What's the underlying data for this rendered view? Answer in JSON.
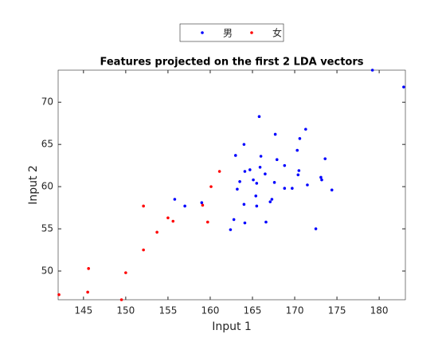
{
  "chart_data": {
    "type": "scatter",
    "title": "Features projected on the first 2 LDA vectors",
    "x_label": "Input 1",
    "y_label": "Input 2",
    "xlim": [
      142,
      183.1
    ],
    "ylim": [
      46.6,
      73.8
    ],
    "xticks": [
      145,
      150,
      155,
      160,
      165,
      170,
      175,
      180
    ],
    "yticks": [
      50,
      55,
      60,
      65,
      70
    ],
    "legend_position": "top-center",
    "series": [
      {
        "name": "男",
        "color": "#0000ff",
        "x": [
          179.2,
          182.9,
          165.8,
          171.3,
          167.7,
          170.6,
          164.0,
          170.3,
          163.0,
          166.0,
          167.9,
          173.6,
          168.8,
          165.9,
          164.1,
          164.7,
          170.5,
          166.5,
          170.4,
          173.1,
          165.1,
          173.2,
          163.5,
          167.6,
          165.5,
          171.5,
          163.2,
          168.8,
          169.7,
          174.4,
          155.8,
          159.0,
          157.0,
          164.0,
          165.4,
          167.1,
          165.5,
          167.3,
          162.8,
          164.1,
          166.6,
          162.4,
          172.5
        ],
        "values": [
          73.8,
          71.8,
          68.3,
          66.8,
          66.2,
          65.7,
          65.0,
          64.3,
          63.7,
          63.6,
          63.2,
          63.3,
          62.5,
          62.3,
          61.8,
          62.0,
          61.9,
          61.5,
          61.4,
          61.1,
          60.8,
          60.8,
          60.6,
          60.5,
          60.4,
          60.2,
          59.7,
          59.8,
          59.8,
          59.6,
          58.5,
          58.1,
          57.7,
          57.9,
          58.9,
          58.2,
          57.7,
          58.5,
          56.1,
          55.7,
          55.8,
          54.9,
          55.0
        ]
      },
      {
        "name": "女",
        "color": "#ff0000",
        "x": [
          142.1,
          145.6,
          145.5,
          150.0,
          149.5,
          152.1,
          152.1,
          153.7,
          155.0,
          155.6,
          159.1,
          159.7,
          160.1,
          161.1
        ],
        "values": [
          47.2,
          50.3,
          47.5,
          49.8,
          46.6,
          57.7,
          52.5,
          54.6,
          56.3,
          55.9,
          57.8,
          55.8,
          60.0,
          61.8
        ]
      }
    ]
  }
}
